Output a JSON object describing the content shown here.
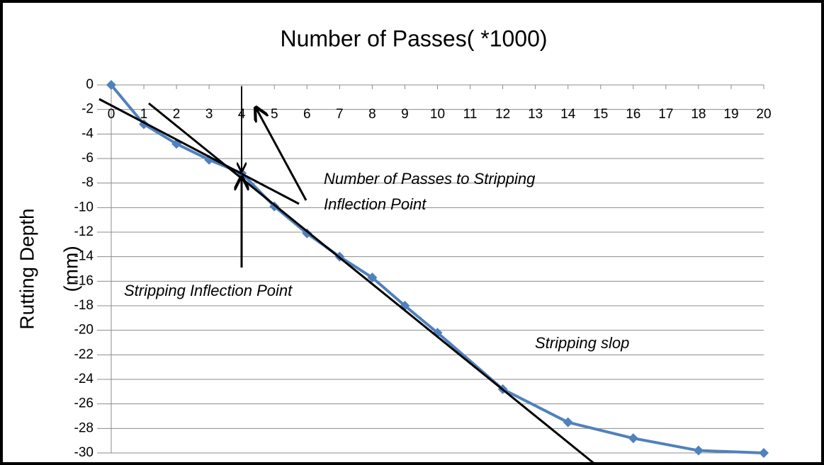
{
  "chart_data": {
    "type": "line",
    "title": "Number of Passes(    *1000)",
    "ylabel_lines": [
      "Rutting Depth",
      "(mm)"
    ],
    "annotations": [
      "Number of Passes to Stripping",
      "Inflection  Point",
      "Stripping Inflection Point",
      "Stripping slop"
    ],
    "x": [
      0,
      1,
      2,
      3,
      4,
      5,
      6,
      7,
      8,
      9,
      10,
      12,
      14,
      16,
      18,
      20
    ],
    "series": [
      {
        "color": "#4f81bd",
        "values": [
          0,
          -3.2,
          -4.8,
          -6.1,
          -7.2,
          -9.9,
          -12.1,
          -14,
          -15.7,
          -18,
          -20.2,
          -24.8,
          -27.5,
          -28.8,
          -29.8,
          -30
        ]
      }
    ],
    "xlim": [
      0,
      20
    ],
    "xticks": [
      0,
      1,
      2,
      3,
      4,
      5,
      6,
      7,
      8,
      9,
      10,
      11,
      12,
      13,
      14,
      15,
      16,
      17,
      18,
      19,
      20
    ],
    "ylim": [
      -30,
      0
    ],
    "yticks": [
      0,
      -2,
      -4,
      -6,
      -8,
      -10,
      -12,
      -14,
      -16,
      -18,
      -20,
      -22,
      -24,
      -26,
      -28,
      -30
    ],
    "grid": true
  }
}
